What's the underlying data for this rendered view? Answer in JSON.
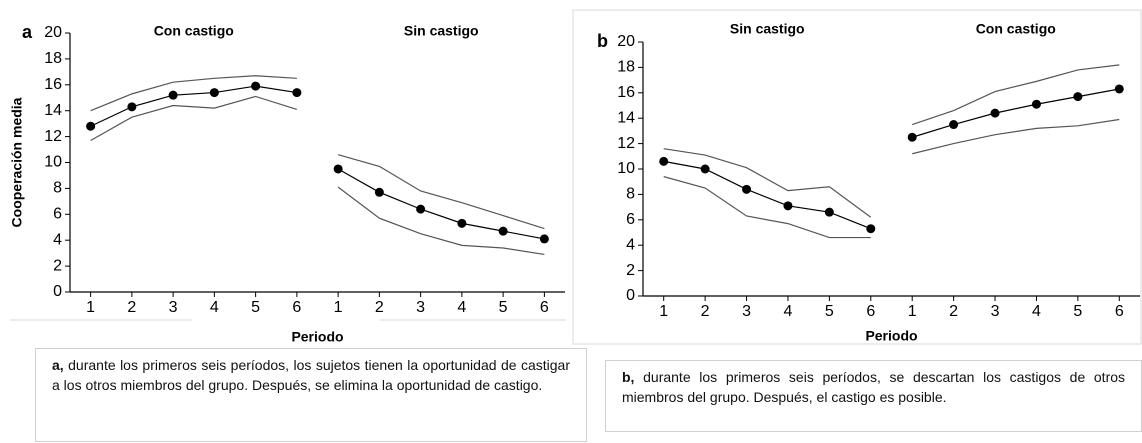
{
  "chart_data": [
    {
      "type": "line",
      "panel": "a",
      "y_label": "Cooperación media",
      "x_label": "Periodo",
      "sections": [
        "Con castigo",
        "Sin castigo"
      ],
      "categories": [
        "1",
        "2",
        "3",
        "4",
        "5",
        "6",
        "1",
        "2",
        "3",
        "4",
        "5",
        "6"
      ],
      "ylim": [
        0,
        20
      ],
      "yticks": [
        0,
        2,
        4,
        6,
        8,
        10,
        12,
        14,
        16,
        18,
        20
      ],
      "caption_lead": "a,",
      "caption": "durante los primeros seis períodos, los sujetos tienen la oportunidad de castigar a los otros miembros del grupo. Después, se elimina la oportunidad de castigo.",
      "series": [
        {
          "color": "#000000",
          "marker": "circle",
          "values": [
            12.8,
            14.3,
            15.2,
            15.4,
            15.9,
            15.4,
            9.5,
            7.7,
            6.4,
            5.3,
            4.7,
            4.1
          ]
        },
        {
          "color": "#555555",
          "values": [
            14.0,
            15.3,
            16.2,
            16.5,
            16.7,
            16.5,
            10.6,
            9.7,
            7.8,
            6.9,
            5.9,
            4.9
          ]
        },
        {
          "color": "#555555",
          "values": [
            11.7,
            13.5,
            14.4,
            14.2,
            15.1,
            14.1,
            8.1,
            5.7,
            4.5,
            3.6,
            3.4,
            2.9
          ]
        }
      ]
    },
    {
      "type": "line",
      "panel": "b",
      "x_label": "Periodo",
      "sections": [
        "Sin castigo",
        "Con castigo"
      ],
      "categories": [
        "1",
        "2",
        "3",
        "4",
        "5",
        "6",
        "1",
        "2",
        "3",
        "4",
        "5",
        "6"
      ],
      "ylim": [
        0,
        20
      ],
      "yticks": [
        0,
        2,
        4,
        6,
        8,
        10,
        12,
        14,
        16,
        18,
        20
      ],
      "caption_lead": "b,",
      "caption": "durante los primeros seis períodos, se descartan los castigos de otros miembros del grupo. Después, el castigo es posible.",
      "series": [
        {
          "color": "#000000",
          "marker": "circle",
          "values": [
            10.6,
            10.0,
            8.4,
            7.1,
            6.6,
            5.3,
            12.5,
            13.5,
            14.4,
            15.1,
            15.7,
            16.3
          ]
        },
        {
          "color": "#555555",
          "values": [
            11.6,
            11.1,
            10.1,
            8.3,
            8.6,
            6.2,
            13.5,
            14.6,
            16.1,
            16.9,
            17.8,
            18.2
          ]
        },
        {
          "color": "#555555",
          "values": [
            9.4,
            8.5,
            6.3,
            5.7,
            4.6,
            4.6,
            11.2,
            12.0,
            12.7,
            13.2,
            13.4,
            13.9
          ]
        }
      ]
    }
  ]
}
